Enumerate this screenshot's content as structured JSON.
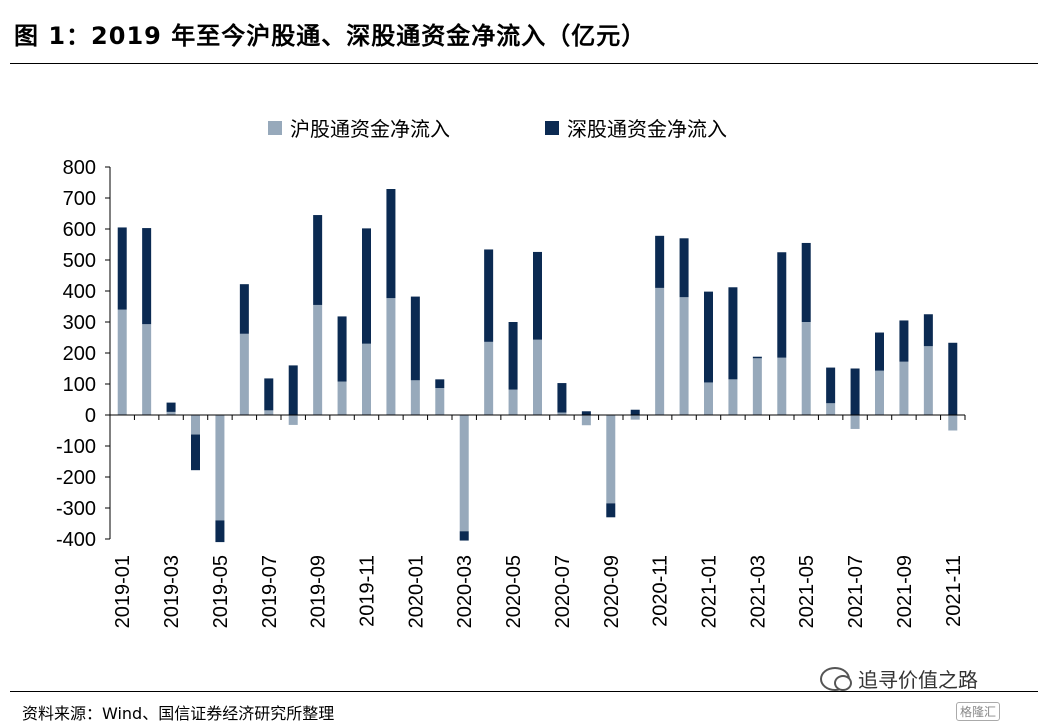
{
  "header": {
    "title": "图 1：2019 年至今沪股通、深股通资金净流入（亿元）"
  },
  "footer": {
    "source": "资料来源：Wind、国信证券经济研究所整理",
    "watermark": "追寻价值之路",
    "badge": "格隆汇"
  },
  "colors": {
    "sh": "#97a9bb",
    "sz": "#0b2a52"
  },
  "chart_data": {
    "type": "bar",
    "stacked": true,
    "title": "",
    "xlabel": "",
    "ylabel": "",
    "ylim": [
      -400,
      800
    ],
    "yticks": [
      -400,
      -300,
      -200,
      -100,
      0,
      100,
      200,
      300,
      400,
      500,
      600,
      700,
      800
    ],
    "grid": false,
    "legend_position": "top",
    "categories": [
      "2019-01",
      "2019-02",
      "2019-03",
      "2019-04",
      "2019-05",
      "2019-06",
      "2019-07",
      "2019-08",
      "2019-09",
      "2019-10",
      "2019-11",
      "2019-12",
      "2020-01",
      "2020-02",
      "2020-03",
      "2020-04",
      "2020-05",
      "2020-06",
      "2020-07",
      "2020-08",
      "2020-09",
      "2020-10",
      "2020-11",
      "2020-12",
      "2021-01",
      "2021-02",
      "2021-03",
      "2021-04",
      "2021-05",
      "2021-06",
      "2021-07",
      "2021-08",
      "2021-09",
      "2021-10",
      "2021-11"
    ],
    "x_tick_labels": [
      "2019-01",
      "2019-03",
      "2019-05",
      "2019-07",
      "2019-09",
      "2019-11",
      "2020-01",
      "2020-03",
      "2020-05",
      "2020-07",
      "2020-09",
      "2020-11",
      "2021-01",
      "2021-03",
      "2021-05",
      "2021-07",
      "2021-09",
      "2021-11"
    ],
    "series": [
      {
        "name": "沪股通资金净流入",
        "color": "#97a9bb",
        "values": [
          340,
          293,
          10,
          -63,
          -340,
          262,
          15,
          -32,
          355,
          108,
          230,
          377,
          112,
          87,
          -375,
          236,
          82,
          243,
          8,
          -33,
          -285,
          -15,
          410,
          380,
          105,
          115,
          183,
          185,
          300,
          38,
          -45,
          143,
          172,
          222,
          -50
        ]
      },
      {
        "name": "深股通资金净流入",
        "color": "#0b2a52",
        "values": [
          265,
          310,
          30,
          -115,
          -70,
          160,
          103,
          160,
          290,
          210,
          372,
          352,
          270,
          28,
          -30,
          298,
          218,
          283,
          95,
          12,
          -45,
          17,
          168,
          190,
          293,
          297,
          5,
          340,
          255,
          115,
          150,
          123,
          133,
          103,
          233
        ]
      }
    ]
  }
}
